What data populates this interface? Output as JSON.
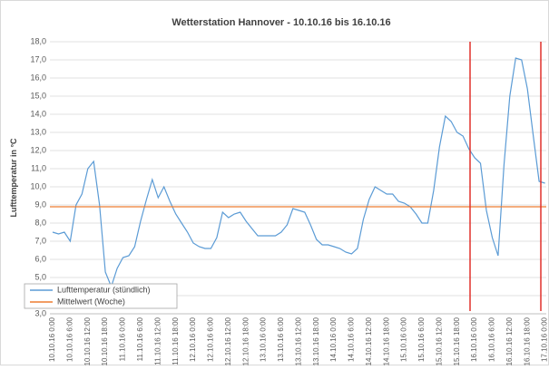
{
  "chart_data": {
    "type": "line",
    "title": "Wetterstation Hannover - 10.10.16 bis 16.10.16",
    "y_label": "Lufttemperatur in °C",
    "categories": [
      "10.10.16 0:00",
      null,
      null,
      "10.10.16 6:00",
      null,
      null,
      "10.10.16 12:00",
      null,
      null,
      "10.10.16 18:00",
      null,
      null,
      "11.10.16 0:00",
      null,
      null,
      "11.10.16 6:00",
      null,
      null,
      "11.10.16 12:00",
      null,
      null,
      "11.10.16 18:00",
      null,
      null,
      "12.10.16 0:00",
      null,
      null,
      "12.10.16 6:00",
      null,
      null,
      "12.10.16 12:00",
      null,
      null,
      "12.10.16 18:00",
      null,
      null,
      "13.10.16 0:00",
      null,
      null,
      "13.10.16 6:00",
      null,
      null,
      "13.10.16 12:00",
      null,
      null,
      "13.10.16 18:00",
      null,
      null,
      "14.10.16 0:00",
      null,
      null,
      "14.10.16 6:00",
      null,
      null,
      "14.10.16 12:00",
      null,
      null,
      "14.10.16 18:00",
      null,
      null,
      "15.10.16 0:00",
      null,
      null,
      "15.10.16 6:00",
      null,
      null,
      "15.10.16 12:00",
      null,
      null,
      "15.10.16 18:00",
      null,
      null,
      "16.10.16 0:00",
      null,
      null,
      "16.10.16 6:00",
      null,
      null,
      "16.10.16 12:00",
      null,
      null,
      "16.10.16 18:00",
      null,
      null,
      "17.10.16 0:00"
    ],
    "series": [
      {
        "name": "Lufttemperatur (stündlich)",
        "color": "#5b9bd5",
        "values": [
          7.5,
          7.4,
          7.5,
          7.0,
          9.0,
          9.6,
          11.0,
          11.4,
          9.0,
          5.3,
          4.5,
          5.5,
          6.1,
          6.2,
          6.7,
          8.1,
          9.3,
          10.4,
          9.4,
          10.0,
          9.2,
          8.5,
          8.0,
          7.5,
          6.9,
          6.7,
          6.6,
          6.6,
          7.2,
          8.6,
          8.3,
          8.5,
          8.6,
          8.1,
          7.7,
          7.3,
          7.3,
          7.3,
          7.3,
          7.5,
          7.9,
          8.8,
          8.7,
          8.6,
          7.9,
          7.1,
          6.8,
          6.8,
          6.7,
          6.6,
          6.4,
          6.3,
          6.6,
          8.2,
          9.3,
          10.0,
          9.8,
          9.6,
          9.6,
          9.2,
          9.1,
          8.9,
          8.5,
          8.0,
          8.0,
          9.8,
          12.2,
          13.9,
          13.6,
          13.0,
          12.8,
          12.1,
          11.6,
          11.3,
          8.7,
          7.2,
          6.2,
          11.2,
          15.0,
          17.1,
          17.0,
          15.4,
          12.8,
          10.3,
          10.2
        ]
      }
    ],
    "mean": {
      "name": "Mittelwert (Woche)",
      "color": "#ed7d31",
      "value": 8.9
    },
    "ylim": [
      3,
      18
    ],
    "yticks": [
      {
        "value": 3,
        "label": "3,0"
      },
      {
        "value": 4,
        "label": "4,0"
      },
      {
        "value": 5,
        "label": "5,0"
      },
      {
        "value": 6,
        "label": "6,0"
      },
      {
        "value": 7,
        "label": "7,0"
      },
      {
        "value": 8,
        "label": "8,0"
      },
      {
        "value": 9,
        "label": "9,0"
      },
      {
        "value": 10,
        "label": "10,0"
      },
      {
        "value": 11,
        "label": "11,0"
      },
      {
        "value": 12,
        "label": "12,0"
      },
      {
        "value": 13,
        "label": "13,0"
      },
      {
        "value": 14,
        "label": "14,0"
      },
      {
        "value": 15,
        "label": "15,0"
      },
      {
        "value": 16,
        "label": "16,0"
      },
      {
        "value": 17,
        "label": "17,0"
      },
      {
        "value": 18,
        "label": "18,0"
      }
    ],
    "grid": true,
    "legend": "bottom-left"
  }
}
